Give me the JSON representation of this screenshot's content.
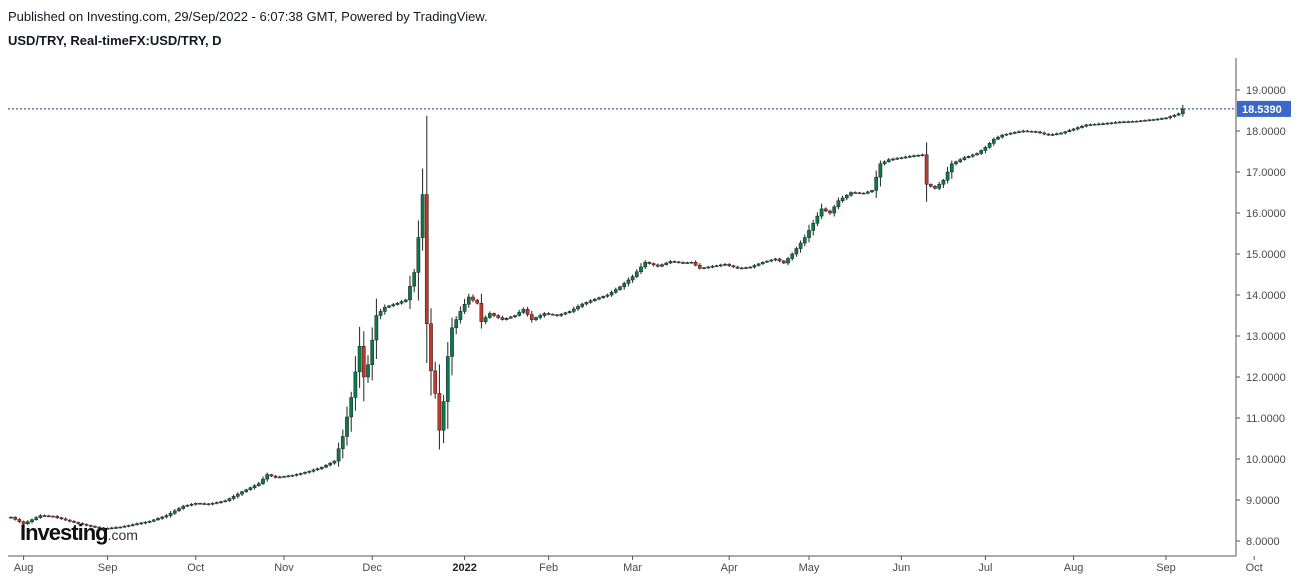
{
  "header": {
    "published": "Published on Investing.com, 29/Sep/2022 - 6:07:38 GMT, Powered by TradingView.",
    "symbol": "USD/TRY, Real-timeFX:USD/TRY, D"
  },
  "logo": {
    "main": "Investing",
    "suffix": ".com"
  },
  "colors": {
    "up": "#0a7a4a",
    "down": "#c0392b",
    "line": "#1f3b73",
    "price_tag": "#3a67c9",
    "grid": "#d9d9d9"
  },
  "chart_data": {
    "type": "candlestick",
    "title": "USD/TRY, Real-timeFX:USD/TRY, D",
    "last_price": 18.539,
    "last_price_label": "18.5390",
    "ylim": [
      7.8,
      19.4
    ],
    "y_ticks": [
      "8.0000",
      "9.0000",
      "10.0000",
      "11.0000",
      "12.0000",
      "13.0000",
      "14.0000",
      "15.0000",
      "16.0000",
      "17.0000",
      "18.0000",
      "19.0000"
    ],
    "y_tick_values": [
      8,
      9,
      10,
      11,
      12,
      13,
      14,
      15,
      16,
      17,
      18,
      19
    ],
    "x_ticks": [
      {
        "label": "Aug",
        "day": 3,
        "bold": false
      },
      {
        "label": "Sep",
        "day": 23,
        "bold": false
      },
      {
        "label": "Oct",
        "day": 44,
        "bold": false
      },
      {
        "label": "Nov",
        "day": 65,
        "bold": false
      },
      {
        "label": "Dec",
        "day": 86,
        "bold": false
      },
      {
        "label": "2022",
        "day": 108,
        "bold": true
      },
      {
        "label": "Feb",
        "day": 128,
        "bold": false
      },
      {
        "label": "Mar",
        "day": 148,
        "bold": false
      },
      {
        "label": "Apr",
        "day": 171,
        "bold": false
      },
      {
        "label": "May",
        "day": 190,
        "bold": false
      },
      {
        "label": "Jun",
        "day": 212,
        "bold": false
      },
      {
        "label": "Jul",
        "day": 232,
        "bold": false
      },
      {
        "label": "Aug",
        "day": 253,
        "bold": false
      },
      {
        "label": "Sep",
        "day": 275,
        "bold": false
      },
      {
        "label": "Oct",
        "day": 296,
        "bold": false
      }
    ],
    "anchors": [
      [
        0,
        8.58
      ],
      [
        3,
        8.42
      ],
      [
        7,
        8.62
      ],
      [
        10,
        8.6
      ],
      [
        14,
        8.48
      ],
      [
        18,
        8.38
      ],
      [
        22,
        8.3
      ],
      [
        26,
        8.34
      ],
      [
        29,
        8.4
      ],
      [
        33,
        8.48
      ],
      [
        37,
        8.62
      ],
      [
        41,
        8.85
      ],
      [
        44,
        8.92
      ],
      [
        47,
        8.9
      ],
      [
        51,
        8.98
      ],
      [
        55,
        9.2
      ],
      [
        59,
        9.4
      ],
      [
        61,
        9.62
      ],
      [
        63,
        9.55
      ],
      [
        67,
        9.6
      ],
      [
        71,
        9.7
      ],
      [
        74,
        9.8
      ],
      [
        77,
        9.95
      ],
      [
        79,
        10.55
      ],
      [
        81,
        11.5
      ],
      [
        83,
        12.75
      ],
      [
        84,
        12.0
      ],
      [
        85,
        12.3
      ],
      [
        87,
        13.5
      ],
      [
        89,
        13.7
      ],
      [
        92,
        13.8
      ],
      [
        94,
        13.88
      ],
      [
        96,
        14.55
      ],
      [
        97,
        15.4
      ],
      [
        98,
        16.45
      ],
      [
        99,
        13.3
      ],
      [
        100,
        12.15
      ],
      [
        101,
        11.6
      ],
      [
        102,
        10.7
      ],
      [
        103,
        11.4
      ],
      [
        104,
        12.5
      ],
      [
        105,
        13.2
      ],
      [
        107,
        13.6
      ],
      [
        109,
        13.95
      ],
      [
        111,
        13.8
      ],
      [
        112,
        13.35
      ],
      [
        114,
        13.55
      ],
      [
        117,
        13.4
      ],
      [
        120,
        13.5
      ],
      [
        122,
        13.65
      ],
      [
        124,
        13.4
      ],
      [
        127,
        13.55
      ],
      [
        130,
        13.5
      ],
      [
        133,
        13.6
      ],
      [
        136,
        13.78
      ],
      [
        139,
        13.9
      ],
      [
        142,
        14.0
      ],
      [
        145,
        14.2
      ],
      [
        148,
        14.45
      ],
      [
        151,
        14.8
      ],
      [
        154,
        14.7
      ],
      [
        157,
        14.82
      ],
      [
        160,
        14.78
      ],
      [
        162,
        14.8
      ],
      [
        164,
        14.65
      ],
      [
        167,
        14.7
      ],
      [
        170,
        14.75
      ],
      [
        173,
        14.65
      ],
      [
        176,
        14.68
      ],
      [
        179,
        14.8
      ],
      [
        182,
        14.88
      ],
      [
        184,
        14.78
      ],
      [
        186,
        15.0
      ],
      [
        189,
        15.4
      ],
      [
        191,
        15.75
      ],
      [
        193,
        16.1
      ],
      [
        195,
        16.0
      ],
      [
        197,
        16.3
      ],
      [
        200,
        16.5
      ],
      [
        203,
        16.48
      ],
      [
        205,
        16.55
      ],
      [
        207,
        17.2
      ],
      [
        209,
        17.3
      ],
      [
        212,
        17.35
      ],
      [
        215,
        17.4
      ],
      [
        217,
        17.42
      ],
      [
        218,
        16.7
      ],
      [
        220,
        16.6
      ],
      [
        222,
        16.8
      ],
      [
        224,
        17.2
      ],
      [
        227,
        17.35
      ],
      [
        230,
        17.45
      ],
      [
        232,
        17.6
      ],
      [
        234,
        17.8
      ],
      [
        236,
        17.9
      ],
      [
        238,
        17.95
      ],
      [
        241,
        18.0
      ],
      [
        244,
        17.98
      ],
      [
        247,
        17.9
      ],
      [
        250,
        17.95
      ],
      [
        253,
        18.05
      ],
      [
        256,
        18.15
      ],
      [
        260,
        18.18
      ],
      [
        264,
        18.22
      ],
      [
        268,
        18.24
      ],
      [
        272,
        18.28
      ],
      [
        275,
        18.32
      ],
      [
        278,
        18.42
      ],
      [
        279,
        18.539
      ]
    ]
  }
}
